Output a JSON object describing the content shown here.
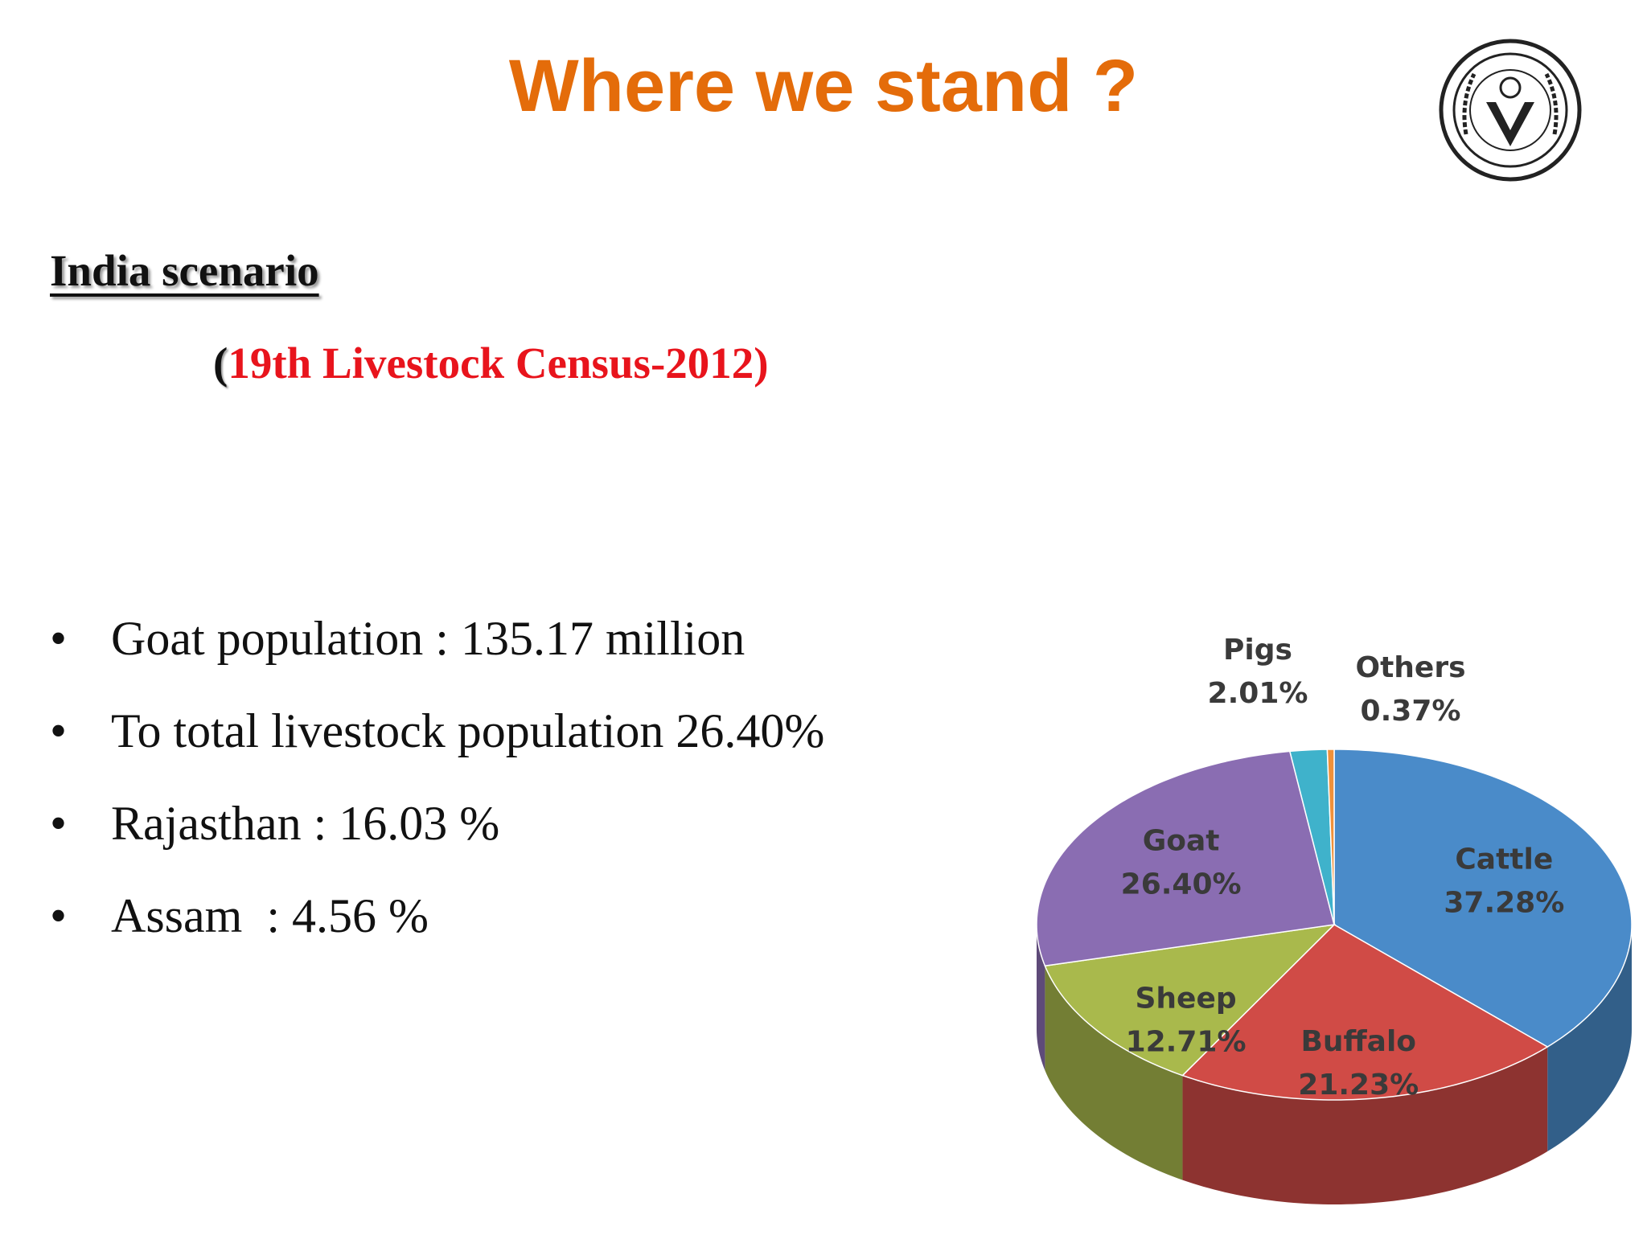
{
  "slide": {
    "title": "Where we stand ?",
    "heading": "India scenario",
    "subtitle_open": "(",
    "subtitle_text": "19th Livestock Census-2012)",
    "bullets": [
      "Goat population : 135.17 million",
      "To total livestock population 26.40%",
      "Rajasthan : 16.03 %",
      "Assam  : 4.56 %"
    ]
  },
  "chart_data": {
    "type": "pie",
    "categories": [
      "Cattle",
      "Buffalo",
      "Sheep",
      "Goat",
      "Pigs",
      "Others"
    ],
    "values": [
      37.28,
      21.23,
      12.71,
      26.4,
      2.01,
      0.37
    ],
    "value_labels": [
      "37.28%",
      "21.23%",
      "12.71%",
      "26.40%",
      "2.01%",
      "0.37%"
    ],
    "colors": [
      "#4a8bc9",
      "#d04b46",
      "#a9b94c",
      "#8a6db2",
      "#3fb2cb",
      "#f0913a"
    ]
  }
}
